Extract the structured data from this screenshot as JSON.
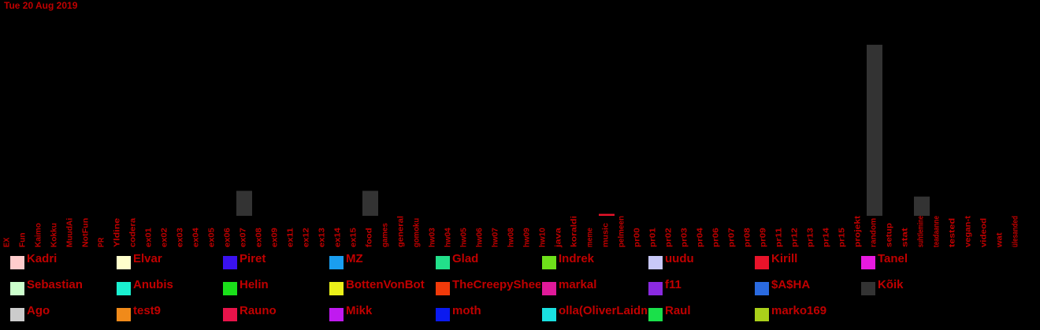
{
  "date": "Tue 20 Aug 2019",
  "chart_data": {
    "type": "bar",
    "categories": [
      "EX",
      "Fun",
      "Kaimo",
      "Kokku",
      "MuudAi",
      "NotFun",
      "PR",
      "Yldine",
      "codera",
      "ex01",
      "ex02",
      "ex03",
      "ex04",
      "ex05",
      "ex06",
      "ex07",
      "ex08",
      "ex09",
      "ex11",
      "ex12",
      "ex13",
      "ex14",
      "ex15",
      "food",
      "games",
      "general",
      "gomoku",
      "hw03",
      "hw04",
      "hw05",
      "hw06",
      "hw07",
      "hw08",
      "hw09",
      "hw10",
      "java",
      "koraldi",
      "meme",
      "music",
      "pelmeen",
      "pr00",
      "pr01",
      "pr02",
      "pr03",
      "pr04",
      "pr06",
      "pr07",
      "pr08",
      "pr09",
      "pr11",
      "pr12",
      "pr13",
      "pr14",
      "pr15",
      "projekt",
      "random",
      "setup",
      "stat",
      "suhtlemine",
      "teadaanne",
      "tested",
      "vegan-t",
      "videod",
      "wat",
      "ülesanded"
    ],
    "series": [
      {
        "name": "Kõik",
        "color": "#333333",
        "values": [
          0,
          0,
          0,
          0,
          0,
          0,
          0,
          0,
          0,
          0,
          0,
          0,
          0,
          0,
          0,
          1.3,
          0,
          0,
          0,
          0,
          0,
          0,
          0,
          1.3,
          0,
          0,
          0,
          0,
          0,
          0,
          0,
          0,
          0,
          0,
          0,
          0,
          0,
          0,
          0,
          0,
          0,
          0,
          0,
          0,
          0,
          0,
          0,
          0,
          0,
          0,
          0,
          0,
          0,
          0,
          0,
          8.9,
          0,
          0,
          1.0,
          0,
          0,
          0,
          0,
          0,
          0
        ]
      },
      {
        "name": "Kirill",
        "color": "#e8132a",
        "values": [
          0,
          0,
          0,
          0,
          0,
          0,
          0,
          0,
          0,
          0,
          0,
          0,
          0,
          0,
          0,
          0,
          0,
          0,
          0,
          0,
          0,
          0,
          0,
          0,
          0,
          0,
          0,
          0,
          0,
          0,
          0,
          0,
          0,
          0,
          0,
          0,
          0,
          0,
          0.1,
          0,
          0,
          0,
          0,
          0,
          0,
          0,
          0,
          0,
          0,
          0,
          0,
          0,
          0,
          0,
          0,
          0,
          0,
          0,
          0,
          0,
          0,
          0,
          0,
          0,
          0
        ]
      }
    ],
    "ylim": [
      0,
      10
    ],
    "legend": [
      {
        "name": "Kadri",
        "color": "#ffcccc"
      },
      {
        "name": "Elvar",
        "color": "#ffffcc"
      },
      {
        "name": "Piret",
        "color": "#3a12f0"
      },
      {
        "name": "MZ",
        "color": "#1a9ef0"
      },
      {
        "name": "Glad",
        "color": "#22e08a"
      },
      {
        "name": "Indrek",
        "color": "#6ee01a"
      },
      {
        "name": "uudu",
        "color": "#c8c8f8"
      },
      {
        "name": "Kirill",
        "color": "#e8132a"
      },
      {
        "name": "Tanel",
        "color": "#e81ae0"
      },
      {
        "name": "Sebastian",
        "color": "#ccffcc"
      },
      {
        "name": "Anubis",
        "color": "#1af0d0"
      },
      {
        "name": "Helin",
        "color": "#1ae01a"
      },
      {
        "name": "BottenVonBot",
        "color": "#eaf01a"
      },
      {
        "name": "TheCreepySheep",
        "color": "#f03a0a"
      },
      {
        "name": "markal",
        "color": "#e01a9a"
      },
      {
        "name": "f11",
        "color": "#8a2ae0"
      },
      {
        "name": "$A$HA",
        "color": "#2a6ae0"
      },
      {
        "name": "Kõik",
        "color": "#333333"
      },
      {
        "name": "Ago",
        "color": "#cccccc"
      },
      {
        "name": "test9",
        "color": "#f08a1a"
      },
      {
        "name": "Rauno",
        "color": "#e8134a"
      },
      {
        "name": "Mikk",
        "color": "#c01af0"
      },
      {
        "name": "moth",
        "color": "#0a1af0"
      },
      {
        "name": "olla(OliverLaidma)",
        "color": "#1ae0e0"
      },
      {
        "name": "Raul",
        "color": "#1ae04a"
      },
      {
        "name": "marko169",
        "color": "#aad01a"
      }
    ]
  }
}
